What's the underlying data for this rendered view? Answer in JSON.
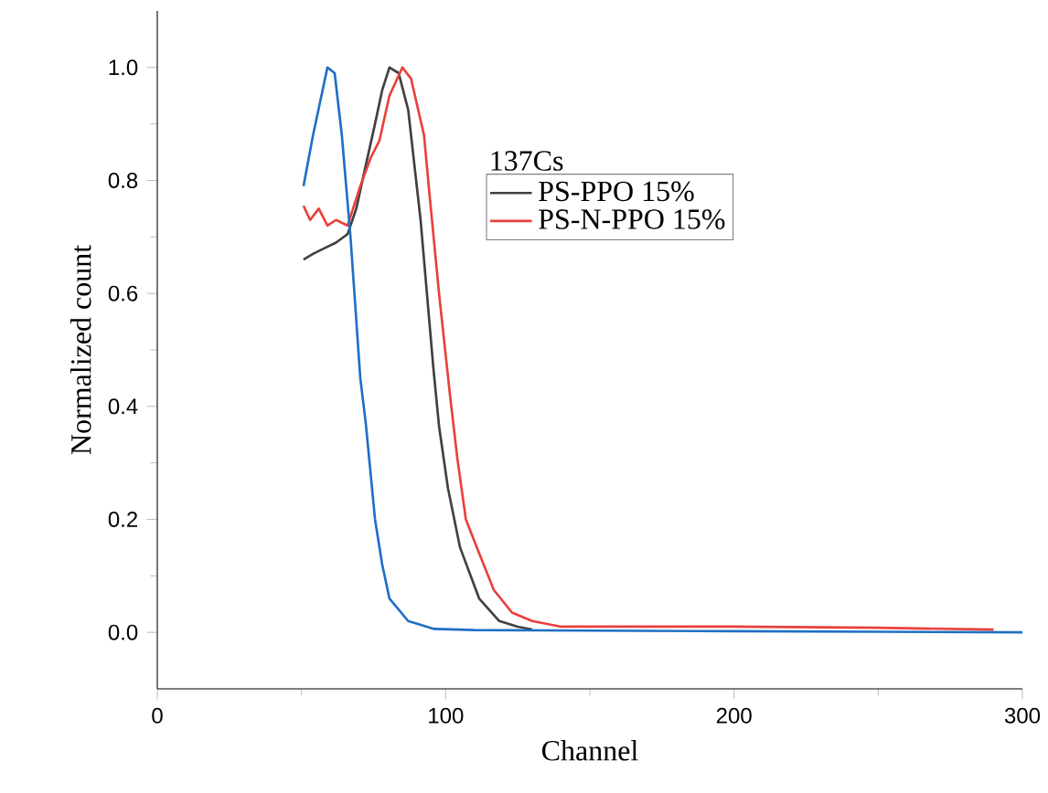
{
  "chart_data": {
    "type": "line",
    "xlabel": "Channel",
    "ylabel": "Normalized count",
    "legend_title": "137Cs",
    "legend": "top right",
    "xlim": [
      0,
      300
    ],
    "ylim": [
      -0.1,
      1.1
    ],
    "xticks": [
      0,
      100,
      200,
      300
    ],
    "yticks": [
      {
        "value": 0,
        "label": "0.0"
      },
      {
        "value": 0.2,
        "label": "0.2"
      },
      {
        "value": 0.4,
        "label": "0.4"
      },
      {
        "value": 0.6,
        "label": "0.6"
      },
      {
        "value": 0.8,
        "label": "0.8"
      },
      {
        "value": 1,
        "label": "1.0"
      }
    ],
    "series": [
      {
        "name": "PS-PPO 15%",
        "color": "#404040",
        "x": [
          50.7,
          54,
          58,
          62,
          66,
          69,
          72,
          75.5,
          78,
          80.5,
          83.7,
          87,
          91.3,
          95.7,
          97.7,
          100.8,
          105,
          111.6,
          118.6,
          125,
          130
        ],
        "values": [
          0.66,
          0.67,
          0.68,
          0.69,
          0.705,
          0.75,
          0.82,
          0.9,
          0.96,
          1.0,
          0.99,
          0.925,
          0.73,
          0.47,
          0.365,
          0.255,
          0.15,
          0.06,
          0.02,
          0.01,
          0.005
        ]
      },
      {
        "name": "PS-N-PPO 15%",
        "color": "#e8413c",
        "x": [
          50.7,
          53,
          56,
          59,
          62,
          66,
          70.4,
          74,
          77,
          80.5,
          85,
          88,
          92.5,
          94.5,
          97.7,
          101.5,
          104,
          107,
          111.6,
          116.7,
          123,
          130,
          140,
          160,
          200,
          250,
          290
        ],
        "values": [
          0.755,
          0.73,
          0.75,
          0.72,
          0.73,
          0.72,
          0.79,
          0.84,
          0.87,
          0.95,
          1.0,
          0.98,
          0.88,
          0.77,
          0.6,
          0.42,
          0.31,
          0.2,
          0.14,
          0.075,
          0.035,
          0.02,
          0.01,
          0.01,
          0.01,
          0.008,
          0.005
        ]
      },
      {
        "color": "#1f6fc5",
        "x": [
          50.7,
          54,
          59,
          61.5,
          64,
          67,
          70.4,
          72.3,
          75.5,
          78,
          80.5,
          87,
          96,
          110,
          150,
          200,
          250,
          300
        ],
        "values": [
          0.79,
          0.88,
          1.0,
          0.99,
          0.88,
          0.7,
          0.45,
          0.37,
          0.2,
          0.12,
          0.06,
          0.02,
          0.006,
          0.004,
          0.003,
          0.002,
          0.001,
          0.0
        ]
      }
    ]
  }
}
